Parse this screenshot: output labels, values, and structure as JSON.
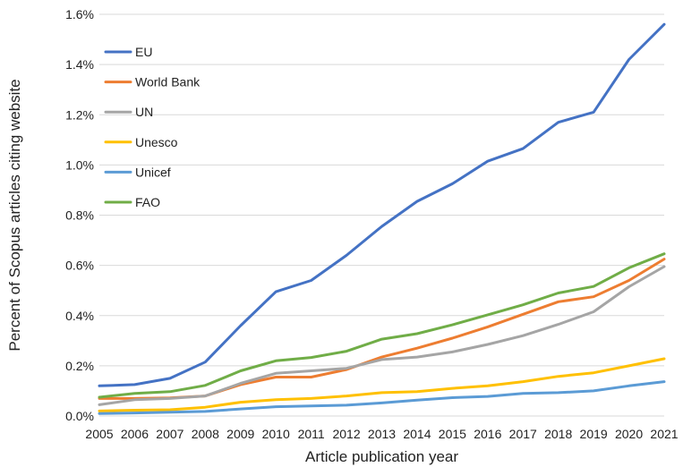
{
  "chart_data": {
    "type": "line",
    "title": "",
    "xlabel": "Article publication year",
    "ylabel": "Percent of Scopus articles citing website",
    "x": [
      "2005",
      "2006",
      "2007",
      "2008",
      "2009",
      "2010",
      "2011",
      "2012",
      "2013",
      "2014",
      "2015",
      "2016",
      "2017",
      "2018",
      "2019",
      "2020",
      "2021"
    ],
    "ylim": [
      0,
      1.6
    ],
    "yticks": [
      "0.0%",
      "0.2%",
      "0.4%",
      "0.6%",
      "0.8%",
      "1.0%",
      "1.2%",
      "1.4%",
      "1.6%"
    ],
    "grid": true,
    "legend_position": "top-left",
    "series": [
      {
        "name": "EU",
        "color": "#4472C4",
        "values": [
          0.12,
          0.125,
          0.15,
          0.215,
          0.36,
          0.495,
          0.54,
          0.64,
          0.755,
          0.855,
          0.925,
          1.015,
          1.065,
          1.17,
          1.21,
          1.42,
          1.56
        ]
      },
      {
        "name": "World Bank",
        "color": "#ED7D31",
        "values": [
          0.07,
          0.07,
          0.072,
          0.08,
          0.125,
          0.155,
          0.155,
          0.185,
          0.235,
          0.27,
          0.31,
          0.355,
          0.405,
          0.455,
          0.475,
          0.54,
          0.625
        ]
      },
      {
        "name": "UN",
        "color": "#A5A5A5",
        "values": [
          0.045,
          0.065,
          0.07,
          0.08,
          0.13,
          0.17,
          0.18,
          0.19,
          0.225,
          0.235,
          0.255,
          0.285,
          0.32,
          0.365,
          0.415,
          0.515,
          0.595
        ]
      },
      {
        "name": "Unesco",
        "color": "#FFC000",
        "values": [
          0.02,
          0.023,
          0.025,
          0.035,
          0.055,
          0.065,
          0.07,
          0.08,
          0.093,
          0.097,
          0.11,
          0.12,
          0.137,
          0.158,
          0.172,
          0.2,
          0.228
        ]
      },
      {
        "name": "Unicef",
        "color": "#5B9BD5",
        "values": [
          0.01,
          0.012,
          0.015,
          0.018,
          0.028,
          0.037,
          0.04,
          0.043,
          0.052,
          0.063,
          0.073,
          0.078,
          0.09,
          0.093,
          0.1,
          0.12,
          0.137
        ]
      },
      {
        "name": "FAO",
        "color": "#70AD47",
        "values": [
          0.075,
          0.09,
          0.097,
          0.122,
          0.18,
          0.22,
          0.233,
          0.258,
          0.306,
          0.328,
          0.363,
          0.403,
          0.443,
          0.49,
          0.516,
          0.59,
          0.646
        ]
      }
    ]
  }
}
